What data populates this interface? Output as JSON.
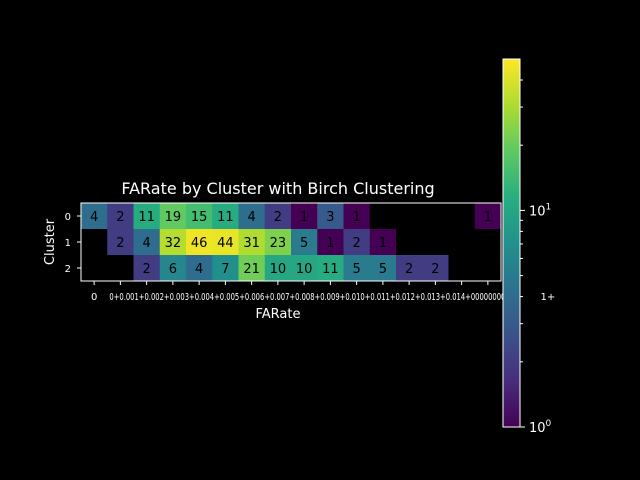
{
  "chart_data": {
    "type": "heatmap",
    "title": "FARate by Cluster with Birch Clustering",
    "xlabel": "FARate",
    "ylabel": "Cluster",
    "x_categories": [
      "0",
      "0+0.001",
      "+0.002",
      "+0.003",
      "+0.004",
      "+0.005",
      "+0.006",
      "+0.007",
      "0.008",
      "+0.009",
      "+0.010",
      "+0.011",
      "+0.012",
      "+0.013",
      "+0.014",
      "1+"
    ],
    "x_tick_labels": [
      "0",
      "0+0.001",
      "0.002",
      "0.003",
      "0.004",
      "0.005",
      "0.006",
      "0.007",
      "0.008",
      "0.009",
      "0.010",
      "0.011",
      "0.012",
      "0.013",
      "0.014",
      "1+"
    ],
    "x_tick_label_overlap_text": "0+0.001+0.002+0.003+0.004+0.005+0.006+0.007+0.008+0.009+0.010+0.011+0.012+0.013+0.014+00000000",
    "y_categories": [
      "0",
      "1",
      "2"
    ],
    "values": [
      [
        4,
        2,
        11,
        19,
        15,
        11,
        4,
        2,
        1,
        3,
        1,
        null,
        null,
        null,
        null,
        1
      ],
      [
        null,
        2,
        4,
        32,
        46,
        44,
        31,
        23,
        5,
        1,
        2,
        1,
        null,
        null,
        null,
        null
      ],
      [
        null,
        null,
        2,
        6,
        4,
        7,
        21,
        10,
        10,
        11,
        5,
        5,
        2,
        2,
        null,
        null
      ]
    ],
    "colorscale": "viridis",
    "color_scale_type": "log",
    "color_range": [
      1,
      50
    ],
    "colorbar_ticks": [
      {
        "base": "10",
        "exp": "1"
      },
      {
        "base": "10",
        "exp": "0"
      }
    ],
    "missing_color": "#000000"
  }
}
